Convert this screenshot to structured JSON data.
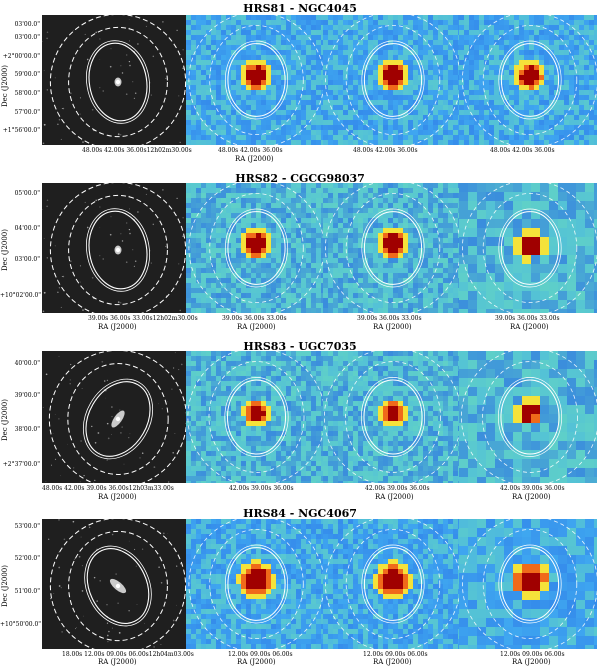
{
  "figure": {
    "ylabel": "Dec (J2000)",
    "xlabel": "RA (J2000)",
    "panels": [
      {
        "title": "HRS81 - NGC4045",
        "yticks": [
          "03'00.0\"",
          "03'00.0\"",
          "+2°00'00.0\"",
          "59'00.0\"",
          "58'00.0\"",
          "57'00.0\"",
          "+1°56'00.0\""
        ],
        "xticks_optical": "48.00s    42.00s    36.00s12h02m30.00s",
        "xticks_a": "48.00s   42.00s   36.00s",
        "xticks_b": "48.00s   42.00s   36.00s",
        "xticks_c": "48.00s   42.00s   36.00s"
      },
      {
        "title": "HRS82 - CGCG98037",
        "yticks": [
          "05'00.0\"",
          "04'00.0\"",
          "03'00.0\"",
          "+10°02'00.0\""
        ],
        "xticks_optical": "39.00s  36.00s  33.00s12h02m30.00s",
        "xticks_a": "39.00s  36.00s  33.00s",
        "xticks_b": "39.00s  36.00s  33.00s",
        "xticks_c": "39.00s  36.00s  33.00s"
      },
      {
        "title": "HRS83 - UGC7035",
        "yticks": [
          "40'00.0\"",
          "39'00.0\"",
          "38'00.0\"",
          "+2°37'00.0\""
        ],
        "xticks_optical": "48.00s    42.00s    39.00s   36.00s12h03m33.00s",
        "xticks_a": "42.00s   39.00s   36.00s",
        "xticks_b": "42.00s   39.00s   36.00s",
        "xticks_c": "42.00s   39.00s   36.00s"
      },
      {
        "title": "HRS84 - NGC4067",
        "yticks": [
          "53'00.0\"",
          "52'00.0\"",
          "51'00.0\"",
          "+10°50'00.0\""
        ],
        "xticks_optical": "18.00s    12.00s  09.00s  06.00s12h04m03.00s",
        "xticks_a": "12.00s   09.00s   06.00s",
        "xticks_b": "12.00s   09.00s   06.00s",
        "xticks_c": "12.00s   09.00s   06.00s"
      }
    ],
    "colors": {
      "optical_bg": "#1f1f1f",
      "map_bg": "#3fa7f0",
      "map_low": "#2a6fe6",
      "map_mid": "#5fd0c8",
      "map_high": "#f5e23a",
      "core_outer": "#f06a1a",
      "core_inner": "#a00000"
    }
  }
}
